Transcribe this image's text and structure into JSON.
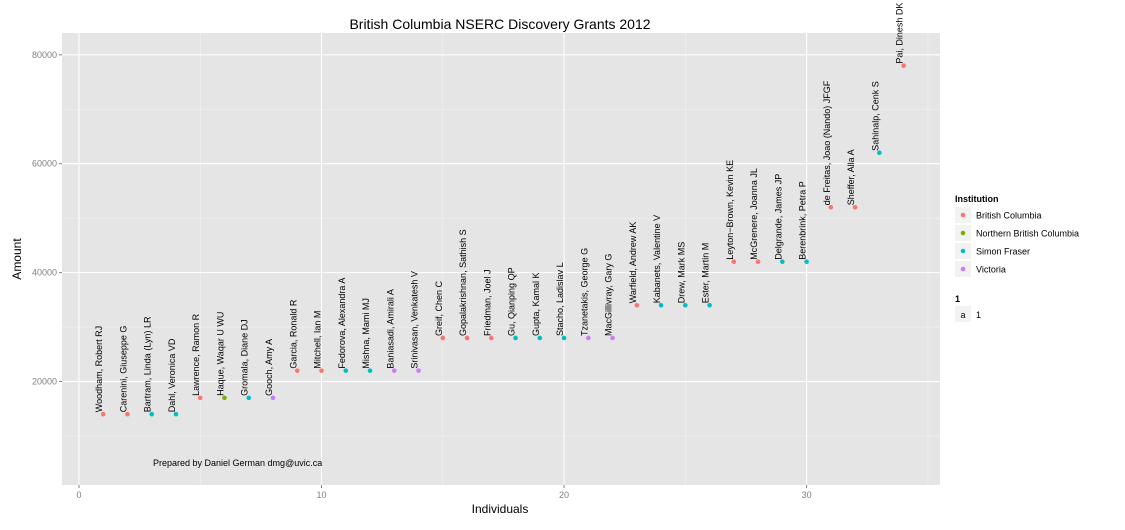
{
  "chart_data": {
    "type": "scatter",
    "title": "British Columbia NSERC Discovery Grants 2012",
    "xlabel": "Individuals",
    "ylabel": "Amount",
    "xlim": [
      -0.7,
      35.5
    ],
    "ylim": [
      1000,
      84000
    ],
    "x_ticks": [
      0,
      10,
      20,
      30
    ],
    "y_ticks": [
      20000,
      40000,
      60000,
      80000
    ],
    "grid": true,
    "legend_position": "right",
    "annotation": "Prepared by Daniel German dmg@uvic.ca",
    "legend": {
      "title": "Institution",
      "entries": [
        {
          "label": "British Columbia",
          "color": "#f8766d"
        },
        {
          "label": "Northern British Columbia",
          "color": "#7cae00"
        },
        {
          "label": "Simon Fraser",
          "color": "#00bfc4"
        },
        {
          "label": "Victoria",
          "color": "#c77cff"
        }
      ],
      "size_title": "1",
      "size_key": "a",
      "size_label": "1"
    },
    "points": [
      {
        "x": 1,
        "y": 14000,
        "label": "Woodham, Robert RJ",
        "institution": "British Columbia"
      },
      {
        "x": 2,
        "y": 14000,
        "label": "Carenini, Giuseppe G",
        "institution": "British Columbia"
      },
      {
        "x": 3,
        "y": 14000,
        "label": "Bartram, Linda (Lyn) LR",
        "institution": "Simon Fraser"
      },
      {
        "x": 4,
        "y": 14000,
        "label": "Dahl, Veronica VD",
        "institution": "Simon Fraser"
      },
      {
        "x": 5,
        "y": 17000,
        "label": "Lawrence, Ramon R",
        "institution": "British Columbia"
      },
      {
        "x": 6,
        "y": 17000,
        "label": "Haque, Waqar U WU",
        "institution": "Northern British Columbia"
      },
      {
        "x": 7,
        "y": 17000,
        "label": "Gromala, Diane DJ",
        "institution": "Simon Fraser"
      },
      {
        "x": 8,
        "y": 17000,
        "label": "Gooch, Amy A",
        "institution": "Victoria"
      },
      {
        "x": 9,
        "y": 22000,
        "label": "Garcia, Ronald R",
        "institution": "British Columbia"
      },
      {
        "x": 10,
        "y": 22000,
        "label": "Mitchell, Ian M",
        "institution": "British Columbia"
      },
      {
        "x": 11,
        "y": 22000,
        "label": "Fedorova, Alexandra A",
        "institution": "Simon Fraser"
      },
      {
        "x": 12,
        "y": 22000,
        "label": "Mishna, Mami MJ",
        "institution": "Simon Fraser"
      },
      {
        "x": 13,
        "y": 22000,
        "label": "Baniasadi, Amirali A",
        "institution": "Victoria"
      },
      {
        "x": 14,
        "y": 22000,
        "label": "Srinivasan, Venkatesh V",
        "institution": "Victoria"
      },
      {
        "x": 15,
        "y": 28000,
        "label": "Greif, Chen C",
        "institution": "British Columbia"
      },
      {
        "x": 16,
        "y": 28000,
        "label": "Gopalakrishnan, Sathish S",
        "institution": "British Columbia"
      },
      {
        "x": 17,
        "y": 28000,
        "label": "Friedman, Joel J",
        "institution": "British Columbia"
      },
      {
        "x": 18,
        "y": 28000,
        "label": "Gu, Qianping QP",
        "institution": "Simon Fraser"
      },
      {
        "x": 19,
        "y": 28000,
        "label": "Gupta, Kamal K",
        "institution": "Simon Fraser"
      },
      {
        "x": 20,
        "y": 28000,
        "label": "Stacho, Ladislav L",
        "institution": "Simon Fraser"
      },
      {
        "x": 21,
        "y": 28000,
        "label": "Tzanetakis, George G",
        "institution": "Victoria"
      },
      {
        "x": 22,
        "y": 28000,
        "label": "MacGillivray, Gary G",
        "institution": "Victoria"
      },
      {
        "x": 23,
        "y": 34000,
        "label": "Warfield, Andrew AK",
        "institution": "British Columbia"
      },
      {
        "x": 24,
        "y": 34000,
        "label": "Kabanets, Valentine V",
        "institution": "Simon Fraser"
      },
      {
        "x": 25,
        "y": 34000,
        "label": "Drew, Mark MS",
        "institution": "Simon Fraser"
      },
      {
        "x": 26,
        "y": 34000,
        "label": "Ester, Martin M",
        "institution": "Simon Fraser"
      },
      {
        "x": 27,
        "y": 42000,
        "label": "Leyton−Brown, Kevin KE",
        "institution": "British Columbia"
      },
      {
        "x": 28,
        "y": 42000,
        "label": "McGrenere, Joanna JL",
        "institution": "British Columbia"
      },
      {
        "x": 29,
        "y": 42000,
        "label": "Delgrande, James JP",
        "institution": "Simon Fraser"
      },
      {
        "x": 30,
        "y": 42000,
        "label": "Berenbrink, Petra P",
        "institution": "Simon Fraser"
      },
      {
        "x": 31,
        "y": 52000,
        "label": "de Freitas, Joao (Nando) JFGF",
        "institution": "British Columbia"
      },
      {
        "x": 32,
        "y": 52000,
        "label": "Sheffer, Alla A",
        "institution": "British Columbia"
      },
      {
        "x": 33,
        "y": 62000,
        "label": "Sahinalp, Cenk S",
        "institution": "Simon Fraser"
      },
      {
        "x": 34,
        "y": 78000,
        "label": "Pai, Dinesh DK",
        "institution": "British Columbia"
      }
    ]
  }
}
